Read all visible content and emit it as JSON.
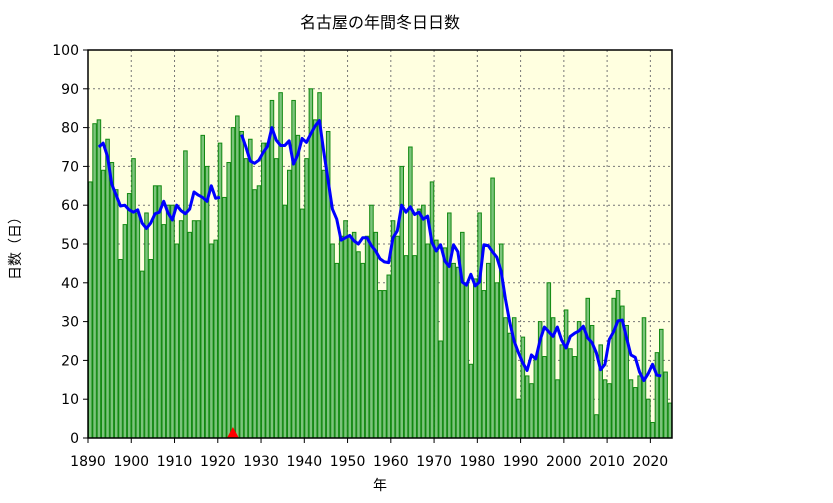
{
  "chart_data": {
    "type": "bar",
    "title": "名古屋の年間冬日日数",
    "xlabel": "年",
    "ylabel": "日数（日）",
    "xlim": [
      1890,
      2025
    ],
    "ylim": [
      0,
      100
    ],
    "grid": true,
    "x_ticks": [
      "1890",
      "1900",
      "1910",
      "1920",
      "1930",
      "1940",
      "1950",
      "1960",
      "1970",
      "1980",
      "1990",
      "2000",
      "2010",
      "2020"
    ],
    "y_ticks": [
      "0",
      "10",
      "20",
      "30",
      "40",
      "50",
      "60",
      "70",
      "80",
      "90",
      "100"
    ],
    "start_year": 1890,
    "values": [
      66,
      81,
      82,
      69,
      77,
      71,
      64,
      46,
      55,
      63,
      72,
      58,
      43,
      58,
      46,
      65,
      65,
      55,
      60,
      60,
      50,
      56,
      74,
      53,
      56,
      56,
      78,
      70,
      50,
      51,
      76,
      62,
      71,
      80,
      83,
      79,
      72,
      77,
      64,
      65,
      76,
      76,
      87,
      72,
      89,
      60,
      69,
      87,
      78,
      59,
      72,
      90,
      82,
      89,
      69,
      79,
      50,
      45,
      52,
      56,
      52,
      53,
      48,
      45,
      52,
      60,
      53,
      38,
      38,
      42,
      56,
      52,
      70,
      47,
      75,
      47,
      59,
      60,
      50,
      66,
      51,
      25,
      49,
      58,
      45,
      44,
      53,
      40,
      19,
      41,
      58,
      38,
      45,
      67,
      40,
      50,
      31,
      27,
      31,
      10,
      26,
      16,
      14,
      21,
      30,
      21,
      40,
      31,
      15,
      24,
      33,
      23,
      21,
      30,
      28,
      36,
      29,
      6,
      24,
      15,
      14,
      36,
      38,
      34,
      29,
      15,
      13,
      16,
      31,
      10,
      4,
      22,
      28,
      17,
      9
    ],
    "moving_average": {
      "window": 5,
      "break_after": 1922,
      "color": "#0000ff"
    },
    "markers": [
      {
        "x": 1923,
        "y": 0,
        "shape": "triangle",
        "color": "#ff0000"
      }
    ],
    "colors": {
      "bar_fill": "#7cc47c",
      "bar_stroke": "#118811",
      "plot_bg": "#ffffe0"
    }
  }
}
